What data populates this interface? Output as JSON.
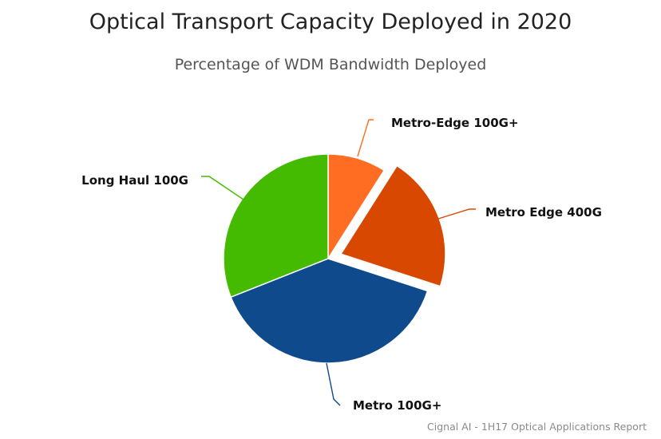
{
  "chart_data": {
    "type": "pie",
    "title": "Optical Transport Capacity Deployed in 2020",
    "subtitle": "Percentage of WDM Bandwidth Deployed",
    "slices": [
      {
        "label": "Metro-Edge 100G+",
        "value": 9,
        "color": "#ff6d22",
        "exploded": false
      },
      {
        "label": "Metro Edge 400G",
        "value": 21,
        "color": "#d94800",
        "exploded": true
      },
      {
        "label": "Metro 100G+",
        "value": 39,
        "color": "#0e4a8c",
        "exploded": false
      },
      {
        "label": "Long Haul 100G",
        "value": 31,
        "color": "#44bb00",
        "exploded": false
      }
    ],
    "credit": "Cignal AI - 1H17 Optical Applications Report"
  }
}
